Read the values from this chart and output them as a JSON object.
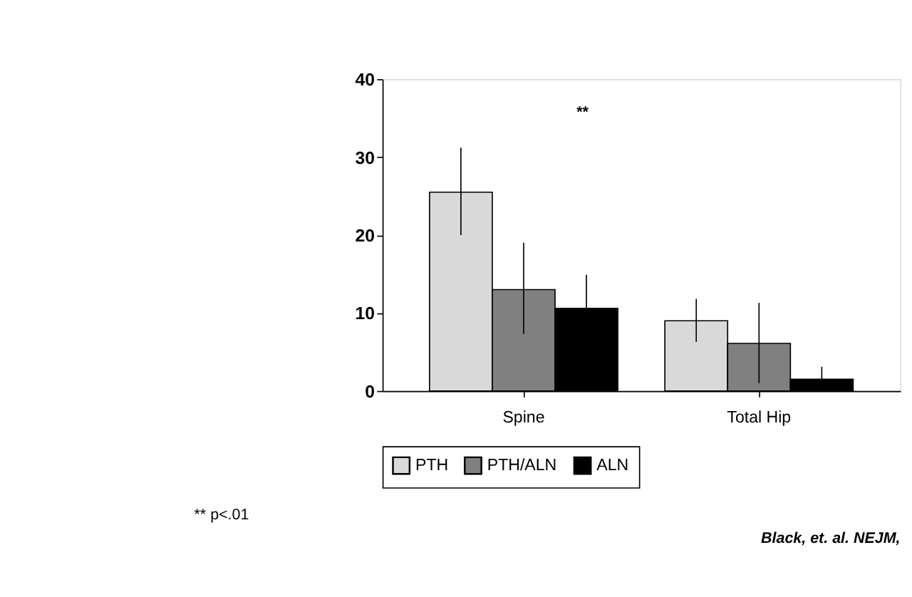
{
  "chart_data": {
    "type": "bar",
    "categories": [
      "Spine",
      "Total Hip"
    ],
    "series": [
      {
        "name": "PTH",
        "color": "#d9d9d9",
        "values": [
          25.5,
          9.0
        ],
        "errors": [
          [
            20.0,
            31.2
          ],
          [
            6.3,
            11.8
          ]
        ]
      },
      {
        "name": "PTH/ALN",
        "color": "#808080",
        "values": [
          13.0,
          6.1
        ],
        "errors": [
          [
            7.3,
            19.0
          ],
          [
            1.0,
            11.3
          ]
        ]
      },
      {
        "name": "ALN",
        "color": "#000000",
        "values": [
          10.6,
          1.5
        ],
        "errors": [
          [
            10.6,
            14.9
          ],
          [
            1.5,
            3.1
          ]
        ]
      }
    ],
    "ylim": [
      0,
      40
    ],
    "yticks": [
      0,
      10,
      20,
      30,
      40
    ],
    "grid": false,
    "legend": "bottom",
    "annotations": [
      "**",
      "** p<.01",
      "Black, et. al. NEJM,"
    ]
  }
}
